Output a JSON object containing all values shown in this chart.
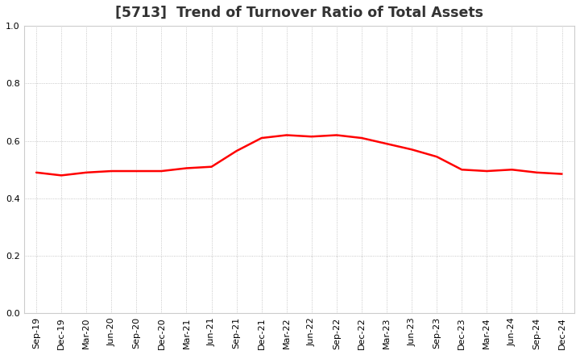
{
  "title": "[5713]  Trend of Turnover Ratio of Total Assets",
  "x_labels": [
    "Sep-19",
    "Dec-19",
    "Mar-20",
    "Jun-20",
    "Sep-20",
    "Dec-20",
    "Mar-21",
    "Jun-21",
    "Sep-21",
    "Dec-21",
    "Mar-22",
    "Jun-22",
    "Sep-22",
    "Dec-22",
    "Mar-23",
    "Jun-23",
    "Sep-23",
    "Dec-23",
    "Mar-24",
    "Jun-24",
    "Sep-24",
    "Dec-24"
  ],
  "y_values": [
    0.49,
    0.48,
    0.49,
    0.495,
    0.495,
    0.495,
    0.505,
    0.51,
    0.565,
    0.61,
    0.62,
    0.615,
    0.62,
    0.61,
    0.59,
    0.57,
    0.545,
    0.5,
    0.495,
    0.5,
    0.49,
    0.485
  ],
  "ylim": [
    0.0,
    1.0
  ],
  "yticks": [
    0.0,
    0.2,
    0.4,
    0.6,
    0.8,
    1.0
  ],
  "line_color": "#ff0000",
  "line_width": 1.8,
  "bg_color": "#ffffff",
  "grid_color": "#999999",
  "title_fontsize": 12.5,
  "tick_fontsize": 8.0,
  "title_color": "#333333"
}
